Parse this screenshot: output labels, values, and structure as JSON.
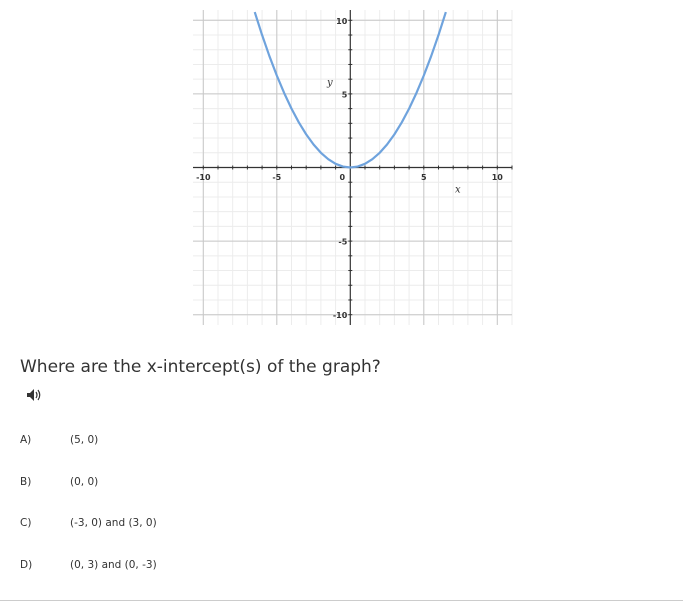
{
  "chart_data": {
    "type": "line",
    "x_label": "x",
    "y_label": "y",
    "x": [
      -6.5,
      -6,
      -5.5,
      -5,
      -4.5,
      -4,
      -3.5,
      -3,
      -2.5,
      -2,
      -1.5,
      -1,
      -0.5,
      0,
      0.5,
      1,
      1.5,
      2,
      2.5,
      3,
      3.5,
      4,
      4.5,
      5,
      5.5,
      6,
      6.5
    ],
    "values": [
      10.5625,
      9,
      7.5625,
      6.25,
      5.0625,
      4,
      3.0625,
      2.25,
      1.5625,
      1,
      0.5625,
      0.25,
      0.0625,
      0,
      0.0625,
      0.25,
      0.5625,
      1,
      1.5625,
      2.25,
      3.0625,
      4,
      5.0625,
      6.25,
      7.5625,
      9,
      10.5625
    ],
    "color": "#6fa3dd",
    "xlim": [
      -10.7,
      11
    ],
    "ylim": [
      -10.7,
      10.7
    ],
    "xticks": [
      -10,
      -5,
      0,
      5,
      10
    ],
    "yticks": [
      -10,
      -5,
      5,
      10
    ],
    "xminorticks": [
      -10,
      -9,
      -8,
      -7,
      -6,
      -5,
      -4,
      -3,
      -2,
      -1,
      1,
      2,
      3,
      4,
      5,
      6,
      7,
      8,
      9,
      10,
      11
    ],
    "yminorticks": [
      -10,
      -9,
      -8,
      -7,
      -6,
      -5,
      -4,
      -3,
      -2,
      -1,
      1,
      2,
      3,
      4,
      5,
      6,
      7,
      8,
      9,
      10
    ],
    "grid": true
  },
  "question": "Where are the x-intercept(s) of the graph?",
  "options": [
    {
      "letter": "A)",
      "text": "(5, 0)"
    },
    {
      "letter": "B)",
      "text": "(0, 0)"
    },
    {
      "letter": "C)",
      "text": "(-3, 0) and (3, 0)"
    },
    {
      "letter": "D)",
      "text": "(0, 3) and (0, -3)"
    }
  ]
}
